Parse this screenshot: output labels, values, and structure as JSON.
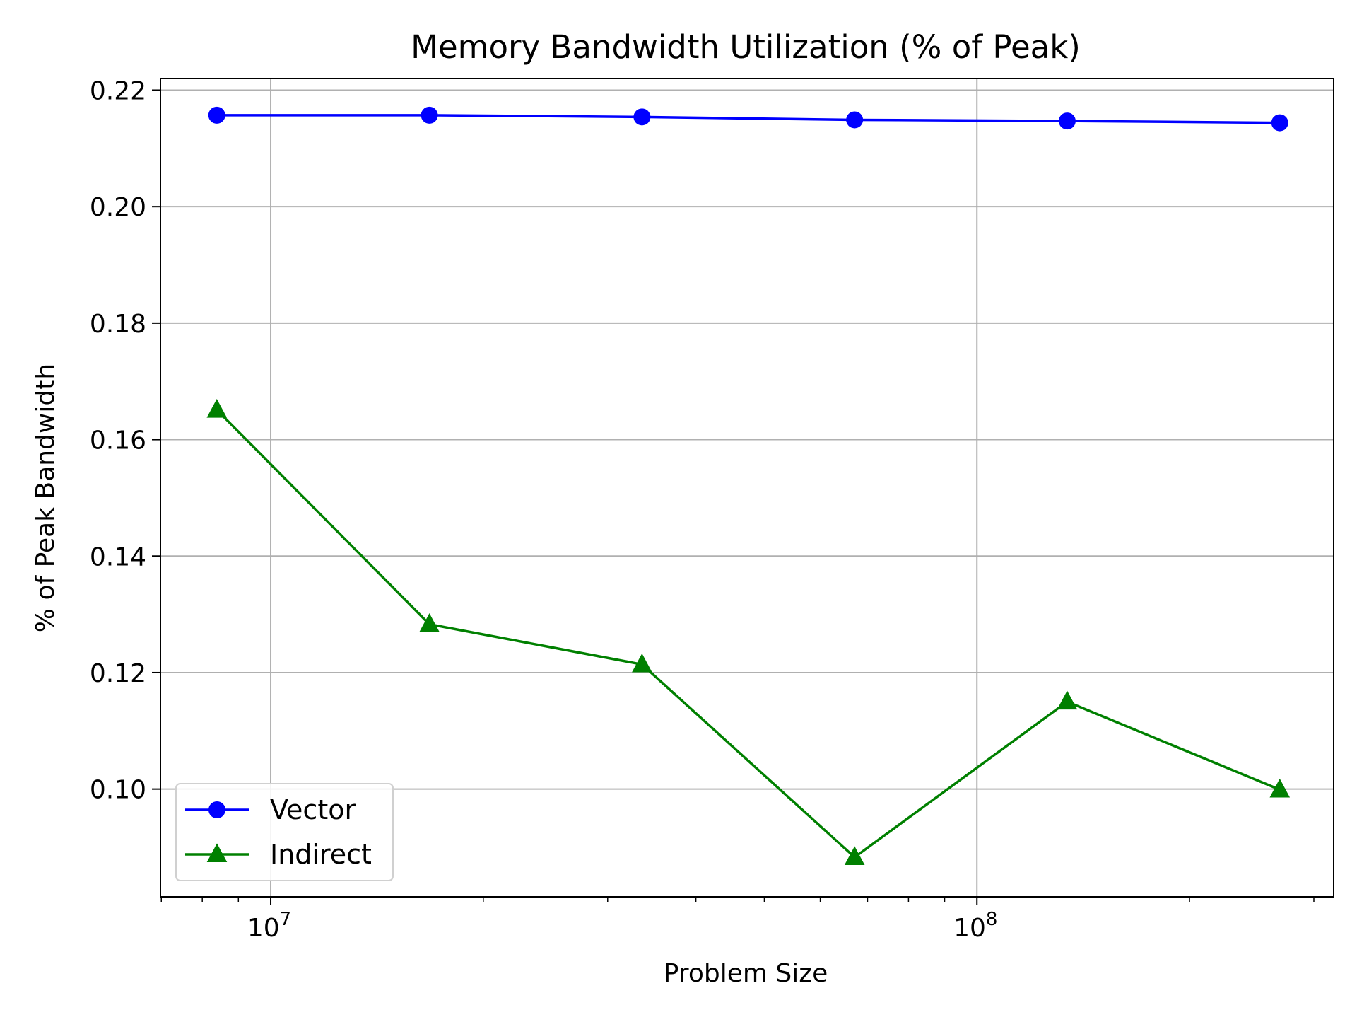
{
  "chart_data": {
    "type": "line",
    "title": "Memory Bandwidth Utilization (% of Peak)",
    "xlabel": "Problem Size",
    "ylabel": "% of Peak Bandwidth",
    "xscale": "log",
    "xlim": [
      6980000,
      320000000
    ],
    "ylim": [
      0.0815,
      0.222
    ],
    "grid": true,
    "legend": "lower-left",
    "x": [
      8388608,
      16777216,
      33554432,
      67108864,
      134217728,
      268435456
    ],
    "x_ticks": [
      {
        "value": 10000000,
        "base": "10",
        "exp": "7"
      },
      {
        "value": 100000000,
        "base": "10",
        "exp": "8"
      }
    ],
    "y_ticks": [
      {
        "value": 0.1,
        "label": "0.10"
      },
      {
        "value": 0.12,
        "label": "0.12"
      },
      {
        "value": 0.14,
        "label": "0.14"
      },
      {
        "value": 0.16,
        "label": "0.16"
      },
      {
        "value": 0.18,
        "label": "0.18"
      },
      {
        "value": 0.2,
        "label": "0.20"
      },
      {
        "value": 0.22,
        "label": "0.22"
      }
    ],
    "series": [
      {
        "name": "Vector",
        "color": "#0000ff",
        "marker": "circle",
        "values": [
          0.2157,
          0.2157,
          0.2154,
          0.2149,
          0.2147,
          0.2144
        ]
      },
      {
        "name": "Indirect",
        "color": "#008000",
        "marker": "triangle",
        "values": [
          0.1651,
          0.1283,
          0.1214,
          0.0883,
          0.115,
          0.0999
        ]
      }
    ]
  }
}
